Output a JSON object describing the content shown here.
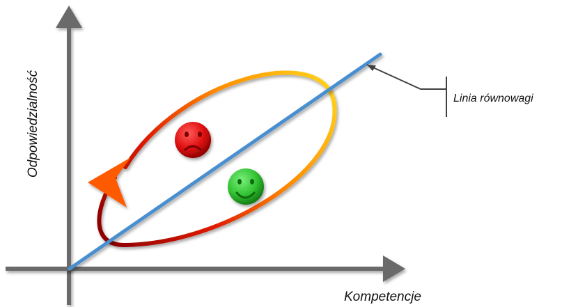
{
  "diagram": {
    "x_axis_label": "Kompetencje",
    "y_axis_label": "Odpowiedzialność",
    "balance_line_label": "Linia równowagi",
    "icons": {
      "sad_face": "sad-face-icon",
      "happy_face": "happy-face-icon"
    },
    "colors": {
      "axis": "#6b6b6b",
      "balance_line": "#4a8fd0",
      "loop_start": "#8b0000",
      "loop_middle": "#ff6a00",
      "loop_end": "#ffd21a",
      "sad_face": "#e01010",
      "happy_face": "#33c233",
      "callout": "#404040"
    }
  }
}
